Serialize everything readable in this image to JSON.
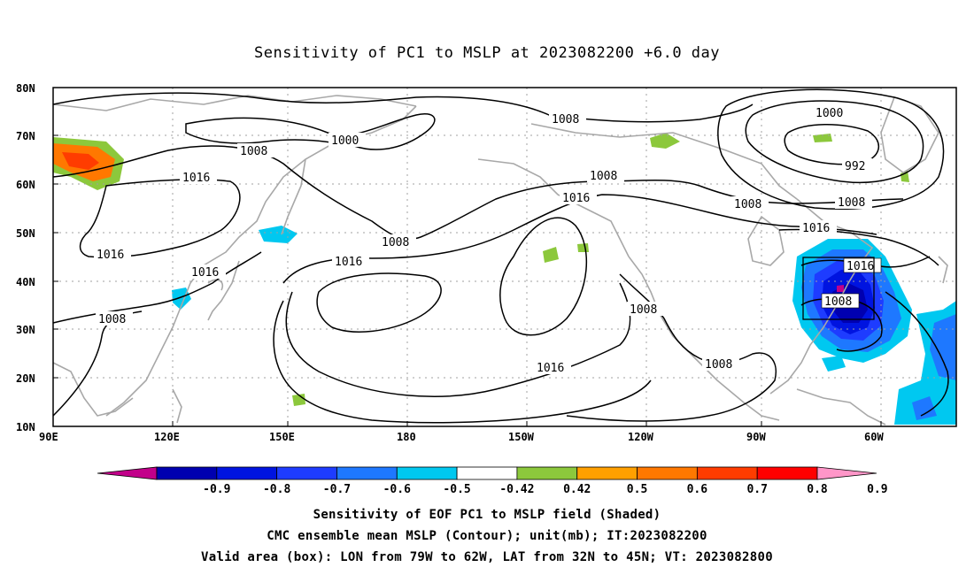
{
  "title": "Sensitivity of PC1 to MSLP at 2023082200 +6.0 day",
  "lat_labels": [
    "80N",
    "70N",
    "60N",
    "50N",
    "40N",
    "30N",
    "20N",
    "10N"
  ],
  "lon_labels": [
    "90E",
    "120E",
    "150E",
    "180",
    "150W",
    "120W",
    "90W",
    "60W"
  ],
  "contour_labels": [
    "1000",
    "1008",
    "1016",
    "1016",
    "1008",
    "1016",
    "1008",
    "1008",
    "1016",
    "1008",
    "1000",
    "992",
    "1008",
    "1008",
    "1016",
    "1016",
    "1008",
    "1008",
    "1016"
  ],
  "colorbar": {
    "labels": [
      "-0.9",
      "-0.8",
      "-0.7",
      "-0.6",
      "-0.5",
      "-0.42",
      "0.42",
      "0.5",
      "0.6",
      "0.7",
      "0.8",
      "0.9"
    ],
    "colors": [
      "#c2008a",
      "#0000b0",
      "#0014e0",
      "#1e3cff",
      "#1e78ff",
      "#00c8f0",
      "#ffffff",
      "#8cc83c",
      "#ffa000",
      "#ff7800",
      "#ff3c00",
      "#ff0000",
      "#ff96c8"
    ]
  },
  "caption": {
    "line1": "Sensitivity of EOF PC1 to MSLP field (Shaded)",
    "line2": "CMC ensemble mean MSLP (Contour); unit(mb); IT:2023082200",
    "line3": "Valid area (box): LON from 79W to 62W, LAT from 32N to 45N; VT: 2023082800"
  }
}
